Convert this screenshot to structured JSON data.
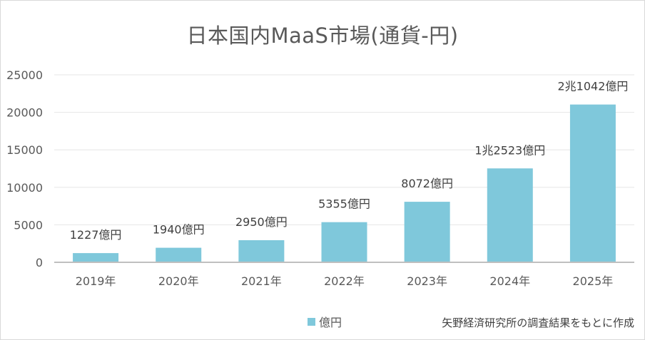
{
  "chart_data": {
    "type": "bar",
    "title": "日本国内MaaS市場(通貨-円)",
    "categories": [
      "2019年",
      "2020年",
      "2021年",
      "2022年",
      "2023年",
      "2024年",
      "2025年"
    ],
    "series": [
      {
        "name": "億円",
        "values": [
          1227,
          1940,
          2950,
          5355,
          8072,
          12523,
          21042
        ],
        "data_labels": [
          "1227億円",
          "1940億円",
          "2950億円",
          "5355億円",
          "8072億円",
          "1兆2523億円",
          "2兆1042億円"
        ]
      }
    ],
    "ylim": [
      0,
      25000
    ],
    "yticks": [
      0,
      5000,
      10000,
      15000,
      20000,
      25000
    ],
    "grid": true,
    "legend_position": "bottom",
    "bar_color": "#7fc8db",
    "source": "矢野経済研究所の調査結果をもとに作成"
  }
}
